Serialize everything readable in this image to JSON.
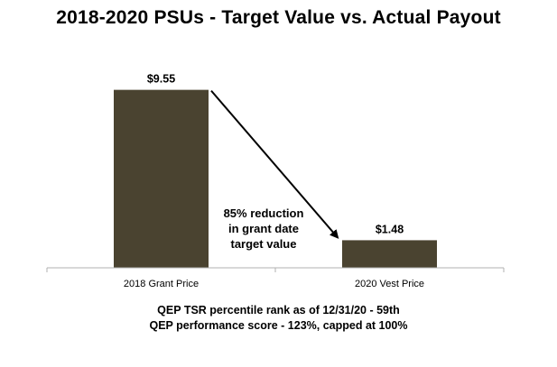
{
  "chart_data": {
    "type": "bar",
    "title": "2018-2020 PSUs - Target Value vs. Actual Payout",
    "categories": [
      "2018 Grant Price",
      "2020 Vest Price"
    ],
    "values": [
      9.55,
      1.48
    ],
    "data_labels": [
      "$9.55",
      "$1.48"
    ],
    "ylim": [
      0,
      10.5
    ],
    "grid": false,
    "bar_color": "#4a4330",
    "annotation": {
      "lines": [
        "85% reduction",
        "in grant date",
        "target value"
      ],
      "arrow_from": "2018 Grant Price",
      "arrow_to": "2020 Vest Price"
    },
    "footnotes": [
      "QEP TSR percentile rank as of 12/31/20  - 59th",
      "QEP performance score - 123%, capped at 100%"
    ]
  }
}
